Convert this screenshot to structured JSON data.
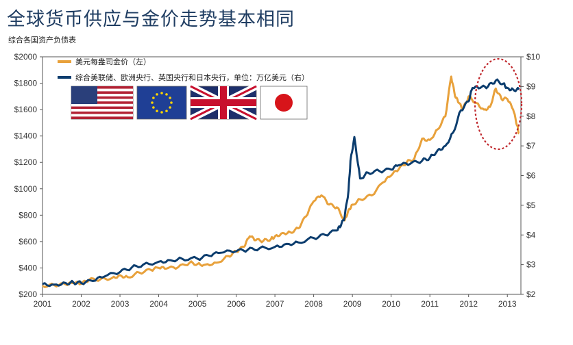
{
  "header": {
    "title": "全球货币供应与金价走势基本相同",
    "subtitle": "综合各国资产负债表"
  },
  "colors": {
    "gold": "#e8a13b",
    "balance": "#0c3d6e",
    "circle": "#c0282d"
  },
  "flags": [
    "us-flag-icon",
    "eu-flag-icon",
    "uk-flag-icon",
    "japan-flag-icon"
  ],
  "chart_data": {
    "type": "line",
    "title": "全球货币供应与金价走势基本相同",
    "subtitle": "综合各国资产负债表",
    "xlabel": "",
    "ylabel": "",
    "xlim": [
      2001,
      2013.35
    ],
    "ylim_left": [
      200,
      2000
    ],
    "ylim_right": [
      2,
      10
    ],
    "x_ticks": [
      "2001",
      "2002",
      "2003",
      "2004",
      "2005",
      "2006",
      "2007",
      "2008",
      "2009",
      "2010",
      "2011",
      "2012",
      "2013"
    ],
    "y_ticks_left": [
      "$200",
      "$400",
      "$600",
      "$800",
      "$1000",
      "$1200",
      "$1400",
      "$1600",
      "$1800",
      "$2000"
    ],
    "y_ticks_right": [
      "$2",
      "$3",
      "$4",
      "$5",
      "$6",
      "$7",
      "$8",
      "$9",
      "$10"
    ],
    "legend_position": "top-left",
    "grid": false,
    "series": [
      {
        "name": "美元每盎司金价（左）",
        "axis": "left",
        "color": "#e8a13b",
        "x": [
          2001.0,
          2001.3,
          2001.6,
          2001.8,
          2002.0,
          2002.2,
          2002.5,
          2002.8,
          2003.0,
          2003.2,
          2003.5,
          2003.8,
          2004.0,
          2004.2,
          2004.5,
          2004.8,
          2005.0,
          2005.2,
          2005.5,
          2005.8,
          2006.0,
          2006.2,
          2006.35,
          2006.5,
          2006.7,
          2006.9,
          2007.0,
          2007.2,
          2007.4,
          2007.6,
          2007.8,
          2008.0,
          2008.2,
          2008.4,
          2008.6,
          2008.8,
          2008.9,
          2009.0,
          2009.2,
          2009.5,
          2009.8,
          2010.0,
          2010.2,
          2010.4,
          2010.6,
          2010.8,
          2011.0,
          2011.2,
          2011.4,
          2011.55,
          2011.65,
          2011.75,
          2011.85,
          2012.0,
          2012.2,
          2012.4,
          2012.55,
          2012.7,
          2012.85,
          2013.0,
          2013.15,
          2013.25,
          2013.3
        ],
        "values": [
          265,
          270,
          275,
          285,
          280,
          310,
          315,
          325,
          345,
          330,
          365,
          385,
          400,
          395,
          405,
          440,
          430,
          425,
          440,
          490,
          525,
          560,
          640,
          610,
          605,
          620,
          640,
          665,
          670,
          700,
          790,
          905,
          950,
          880,
          860,
          760,
          840,
          880,
          920,
          950,
          1050,
          1100,
          1150,
          1200,
          1230,
          1380,
          1370,
          1450,
          1550,
          1850,
          1700,
          1650,
          1600,
          1700,
          1650,
          1600,
          1620,
          1760,
          1680,
          1680,
          1600,
          1480,
          1420
        ]
      },
      {
        "name": "综合美联储、欧洲央行、英国央行和日本央行，单位：万亿美元（右）",
        "axis": "right",
        "color": "#0c3d6e",
        "x": [
          2001.0,
          2001.3,
          2001.6,
          2001.8,
          2002.0,
          2002.3,
          2002.6,
          2003.0,
          2003.3,
          2003.6,
          2004.0,
          2004.3,
          2004.6,
          2005.0,
          2005.3,
          2005.6,
          2006.0,
          2006.3,
          2006.6,
          2007.0,
          2007.3,
          2007.6,
          2008.0,
          2008.3,
          2008.6,
          2008.7,
          2008.8,
          2008.9,
          2008.95,
          2009.05,
          2009.2,
          2009.4,
          2009.7,
          2010.0,
          2010.2,
          2010.5,
          2010.8,
          2011.0,
          2011.2,
          2011.4,
          2011.6,
          2011.8,
          2012.0,
          2012.1,
          2012.3,
          2012.5,
          2012.7,
          2012.9,
          2013.0,
          2013.15,
          2013.3
        ],
        "values": [
          2.35,
          2.33,
          2.38,
          2.4,
          2.38,
          2.45,
          2.6,
          2.75,
          2.9,
          3.0,
          3.1,
          3.15,
          3.2,
          3.2,
          3.3,
          3.4,
          3.45,
          3.5,
          3.55,
          3.6,
          3.7,
          3.75,
          3.9,
          4.0,
          4.15,
          4.3,
          4.6,
          5.5,
          6.5,
          7.3,
          5.9,
          6.1,
          6.15,
          6.2,
          6.35,
          6.4,
          6.5,
          6.6,
          6.85,
          7.0,
          7.45,
          8.2,
          8.5,
          8.95,
          8.95,
          9.0,
          9.2,
          9.1,
          8.95,
          8.9,
          8.9
        ]
      }
    ]
  }
}
